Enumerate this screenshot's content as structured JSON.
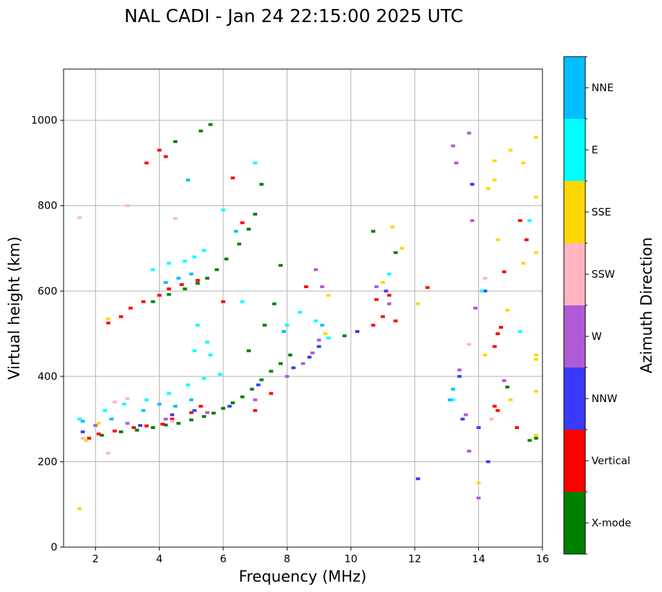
{
  "chart_data": {
    "type": "scatter",
    "title": "NAL CADI - Jan 24 22:15:00 2025 UTC",
    "xlabel": "Frequency (MHz)",
    "ylabel": "Virtual height (km)",
    "xlim": [
      1,
      16
    ],
    "ylim": [
      0,
      1120
    ],
    "xticks": [
      2,
      4,
      6,
      8,
      10,
      12,
      14,
      16
    ],
    "yticks": [
      0,
      200,
      400,
      600,
      800,
      1000
    ],
    "grid": true,
    "colorbar": {
      "label": "Azimuth Direction",
      "categories": [
        {
          "name": "X-mode",
          "color": "#008000"
        },
        {
          "name": "Vertical",
          "color": "#ff0000"
        },
        {
          "name": "NNW",
          "color": "#3a3aff"
        },
        {
          "name": "W",
          "color": "#b05ad6"
        },
        {
          "name": "SSW",
          "color": "#ffb6c1"
        },
        {
          "name": "SSE",
          "color": "#ffd700"
        },
        {
          "name": "E",
          "color": "#00ffff"
        },
        {
          "name": "NNE",
          "color": "#00bfff"
        }
      ]
    },
    "series": [
      {
        "name": "X-mode",
        "points": [
          [
            2.2,
            262
          ],
          [
            2.8,
            270
          ],
          [
            3.3,
            274
          ],
          [
            3.8,
            280
          ],
          [
            4.2,
            286
          ],
          [
            4.6,
            290
          ],
          [
            5.0,
            298
          ],
          [
            5.4,
            306
          ],
          [
            5.7,
            314
          ],
          [
            6.0,
            325
          ],
          [
            6.3,
            338
          ],
          [
            6.6,
            352
          ],
          [
            6.9,
            370
          ],
          [
            7.2,
            392
          ],
          [
            7.5,
            412
          ],
          [
            7.8,
            430
          ],
          [
            8.1,
            450
          ],
          [
            3.8,
            575
          ],
          [
            4.3,
            592
          ],
          [
            4.8,
            605
          ],
          [
            5.2,
            618
          ],
          [
            5.5,
            630
          ],
          [
            5.8,
            650
          ],
          [
            6.1,
            675
          ],
          [
            6.5,
            710
          ],
          [
            6.8,
            745
          ],
          [
            7.0,
            780
          ],
          [
            7.2,
            850
          ],
          [
            7.8,
            660
          ],
          [
            7.6,
            570
          ],
          [
            7.3,
            520
          ],
          [
            6.8,
            460
          ],
          [
            4.5,
            950
          ],
          [
            5.3,
            975
          ],
          [
            5.6,
            990
          ],
          [
            9.8,
            495
          ],
          [
            10.7,
            740
          ],
          [
            11.4,
            690
          ],
          [
            14.9,
            375
          ],
          [
            15.8,
            255
          ],
          [
            15.6,
            250
          ]
        ]
      },
      {
        "name": "Vertical",
        "points": [
          [
            1.8,
            255
          ],
          [
            2.1,
            265
          ],
          [
            2.6,
            272
          ],
          [
            3.2,
            280
          ],
          [
            3.6,
            284
          ],
          [
            4.1,
            288
          ],
          [
            4.4,
            300
          ],
          [
            5.0,
            315
          ],
          [
            5.3,
            330
          ],
          [
            2.4,
            525
          ],
          [
            2.8,
            540
          ],
          [
            3.1,
            560
          ],
          [
            3.5,
            575
          ],
          [
            4.0,
            590
          ],
          [
            4.3,
            605
          ],
          [
            4.7,
            615
          ],
          [
            5.2,
            625
          ],
          [
            4.0,
            930
          ],
          [
            4.2,
            915
          ],
          [
            3.6,
            900
          ],
          [
            6.0,
            575
          ],
          [
            6.3,
            865
          ],
          [
            6.6,
            760
          ],
          [
            7.0,
            320
          ],
          [
            7.5,
            360
          ],
          [
            8.6,
            610
          ],
          [
            10.7,
            520
          ],
          [
            11.0,
            540
          ],
          [
            11.4,
            530
          ],
          [
            10.8,
            580
          ],
          [
            11.2,
            590
          ],
          [
            12.4,
            608
          ],
          [
            14.5,
            470
          ],
          [
            14.6,
            500
          ],
          [
            14.7,
            515
          ],
          [
            14.5,
            330
          ],
          [
            14.6,
            320
          ],
          [
            14.8,
            645
          ],
          [
            15.2,
            280
          ],
          [
            15.3,
            765
          ],
          [
            15.5,
            720
          ]
        ]
      },
      {
        "name": "NNW",
        "points": [
          [
            1.6,
            270
          ],
          [
            3.4,
            285
          ],
          [
            4.4,
            310
          ],
          [
            5.1,
            320
          ],
          [
            6.2,
            330
          ],
          [
            7.1,
            380
          ],
          [
            8.2,
            420
          ],
          [
            8.7,
            445
          ],
          [
            9.0,
            470
          ],
          [
            10.2,
            505
          ],
          [
            11.1,
            600
          ],
          [
            13.4,
            400
          ],
          [
            13.5,
            300
          ],
          [
            13.8,
            850
          ],
          [
            14.0,
            280
          ],
          [
            14.2,
            600
          ],
          [
            14.3,
            200
          ],
          [
            12.1,
            160
          ]
        ]
      },
      {
        "name": "W",
        "points": [
          [
            2.0,
            285
          ],
          [
            3.0,
            290
          ],
          [
            4.2,
            300
          ],
          [
            5.5,
            315
          ],
          [
            7.0,
            345
          ],
          [
            8.0,
            400
          ],
          [
            8.5,
            430
          ],
          [
            8.8,
            455
          ],
          [
            9.0,
            485
          ],
          [
            8.9,
            650
          ],
          [
            9.1,
            610
          ],
          [
            10.8,
            610
          ],
          [
            11.2,
            570
          ],
          [
            13.2,
            940
          ],
          [
            13.3,
            900
          ],
          [
            13.4,
            415
          ],
          [
            13.6,
            310
          ],
          [
            13.7,
            970
          ],
          [
            13.7,
            225
          ],
          [
            13.9,
            560
          ],
          [
            14.0,
            115
          ],
          [
            13.8,
            765
          ],
          [
            14.8,
            390
          ]
        ]
      },
      {
        "name": "SSW",
        "points": [
          [
            1.6,
            255
          ],
          [
            2.6,
            340
          ],
          [
            3.0,
            348
          ],
          [
            4.4,
            295
          ],
          [
            4.5,
            770
          ],
          [
            2.4,
            220
          ],
          [
            3.0,
            800
          ],
          [
            1.5,
            772
          ],
          [
            14.4,
            300
          ],
          [
            14.2,
            630
          ],
          [
            13.7,
            475
          ]
        ]
      },
      {
        "name": "SSE",
        "points": [
          [
            1.5,
            90
          ],
          [
            1.7,
            250
          ],
          [
            2.1,
            290
          ],
          [
            2.4,
            535
          ],
          [
            9.3,
            590
          ],
          [
            9.2,
            500
          ],
          [
            11.0,
            620
          ],
          [
            11.3,
            750
          ],
          [
            11.6,
            700
          ],
          [
            12.1,
            570
          ],
          [
            14.2,
            450
          ],
          [
            14.0,
            150
          ],
          [
            14.3,
            840
          ],
          [
            14.5,
            905
          ],
          [
            14.5,
            860
          ],
          [
            14.6,
            720
          ],
          [
            14.9,
            555
          ],
          [
            15.0,
            930
          ],
          [
            15.0,
            345
          ],
          [
            15.4,
            900
          ],
          [
            15.4,
            665
          ],
          [
            15.8,
            960
          ],
          [
            15.8,
            820
          ],
          [
            15.8,
            690
          ],
          [
            15.8,
            450
          ],
          [
            15.8,
            440
          ],
          [
            15.8,
            365
          ],
          [
            15.8,
            262
          ]
        ]
      },
      {
        "name": "E",
        "points": [
          [
            1.5,
            300
          ],
          [
            2.3,
            320
          ],
          [
            2.9,
            335
          ],
          [
            3.6,
            345
          ],
          [
            4.3,
            360
          ],
          [
            4.9,
            380
          ],
          [
            5.4,
            395
          ],
          [
            5.9,
            405
          ],
          [
            5.2,
            520
          ],
          [
            5.5,
            480
          ],
          [
            5.1,
            460
          ],
          [
            5.6,
            450
          ],
          [
            3.8,
            650
          ],
          [
            4.3,
            665
          ],
          [
            4.8,
            670
          ],
          [
            5.1,
            680
          ],
          [
            5.4,
            695
          ],
          [
            6.0,
            790
          ],
          [
            6.6,
            575
          ],
          [
            7.0,
            900
          ],
          [
            8.0,
            520
          ],
          [
            8.4,
            550
          ],
          [
            8.9,
            530
          ],
          [
            9.3,
            490
          ],
          [
            11.2,
            640
          ],
          [
            13.2,
            345
          ],
          [
            14.1,
            600
          ],
          [
            15.3,
            505
          ],
          [
            15.6,
            765
          ]
        ]
      },
      {
        "name": "NNE",
        "points": [
          [
            1.6,
            295
          ],
          [
            2.5,
            300
          ],
          [
            3.5,
            320
          ],
          [
            4.0,
            335
          ],
          [
            4.5,
            330
          ],
          [
            5.0,
            345
          ],
          [
            4.2,
            620
          ],
          [
            4.6,
            630
          ],
          [
            5.0,
            640
          ],
          [
            4.9,
            860
          ],
          [
            6.4,
            740
          ],
          [
            7.9,
            505
          ],
          [
            9.1,
            520
          ],
          [
            13.2,
            370
          ],
          [
            13.1,
            345
          ]
        ]
      }
    ]
  }
}
